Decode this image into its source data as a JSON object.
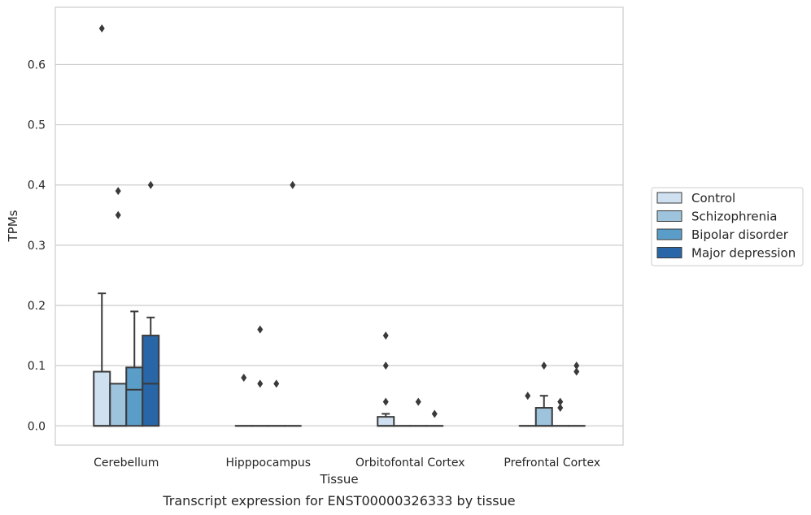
{
  "chart_data": {
    "type": "box",
    "xlabel": "Tissue",
    "ylabel": "TPMs",
    "caption": "Transcript expression for ENST00000326333 by tissue",
    "ylim": [
      -0.032,
      0.695
    ],
    "yticks": [
      "0.0",
      "0.1",
      "0.2",
      "0.3",
      "0.4",
      "0.5",
      "0.6"
    ],
    "grid": "horizontal",
    "legend_position": "right",
    "categories": [
      "Cerebellum",
      "Hipppocampus",
      "Orbitofontal Cortex",
      "Prefrontal Cortex"
    ],
    "series": [
      {
        "name": "Control",
        "color": "#cfe0f0",
        "boxes": [
          {
            "q1": 0,
            "median": 0,
            "q3": 0.09,
            "whisker_low": 0,
            "whisker_high": 0.22,
            "outliers": [
              0.66
            ]
          },
          {
            "q1": 0,
            "median": 0,
            "q3": 0,
            "whisker_low": 0,
            "whisker_high": 0,
            "outliers": [
              0.08
            ]
          },
          {
            "q1": 0,
            "median": 0,
            "q3": 0.015,
            "whisker_low": 0,
            "whisker_high": 0.02,
            "outliers": [
              0.15,
              0.1,
              0.04
            ]
          },
          {
            "q1": 0,
            "median": 0,
            "q3": 0,
            "whisker_low": 0,
            "whisker_high": 0,
            "outliers": [
              0.05
            ]
          }
        ]
      },
      {
        "name": "Schizophrenia",
        "color": "#9ec3dc",
        "boxes": [
          {
            "q1": 0,
            "median": 0,
            "q3": 0.07,
            "whisker_low": 0,
            "whisker_high": 0.07,
            "outliers": [
              0.39,
              0.35
            ]
          },
          {
            "q1": 0,
            "median": 0,
            "q3": 0,
            "whisker_low": 0,
            "whisker_high": 0,
            "outliers": [
              0.16,
              0.07
            ]
          },
          {
            "q1": 0,
            "median": 0,
            "q3": 0,
            "whisker_low": 0,
            "whisker_high": 0,
            "outliers": []
          },
          {
            "q1": 0,
            "median": 0,
            "q3": 0.03,
            "whisker_low": 0,
            "whisker_high": 0.05,
            "outliers": [
              0.1
            ]
          }
        ]
      },
      {
        "name": "Bipolar disorder",
        "color": "#5b9dc9",
        "boxes": [
          {
            "q1": 0,
            "median": 0.06,
            "q3": 0.097,
            "whisker_low": 0,
            "whisker_high": 0.19,
            "outliers": []
          },
          {
            "q1": 0,
            "median": 0,
            "q3": 0,
            "whisker_low": 0,
            "whisker_high": 0,
            "outliers": [
              0.07
            ]
          },
          {
            "q1": 0,
            "median": 0,
            "q3": 0,
            "whisker_low": 0,
            "whisker_high": 0,
            "outliers": [
              0.04
            ]
          },
          {
            "q1": 0,
            "median": 0,
            "q3": 0,
            "whisker_low": 0,
            "whisker_high": 0,
            "outliers": [
              0.04,
              0.03
            ]
          }
        ]
      },
      {
        "name": "Major depression",
        "color": "#2966a8",
        "boxes": [
          {
            "q1": 0,
            "median": 0.07,
            "q3": 0.15,
            "whisker_low": 0,
            "whisker_high": 0.18,
            "outliers": [
              0.4
            ]
          },
          {
            "q1": 0,
            "median": 0,
            "q3": 0,
            "whisker_low": 0,
            "whisker_high": 0,
            "outliers": [
              0.4
            ]
          },
          {
            "q1": 0,
            "median": 0,
            "q3": 0,
            "whisker_low": 0,
            "whisker_high": 0,
            "outliers": [
              0.02
            ]
          },
          {
            "q1": 0,
            "median": 0,
            "q3": 0,
            "whisker_low": 0,
            "whisker_high": 0,
            "outliers": [
              0.1,
              0.09
            ]
          }
        ]
      }
    ]
  }
}
